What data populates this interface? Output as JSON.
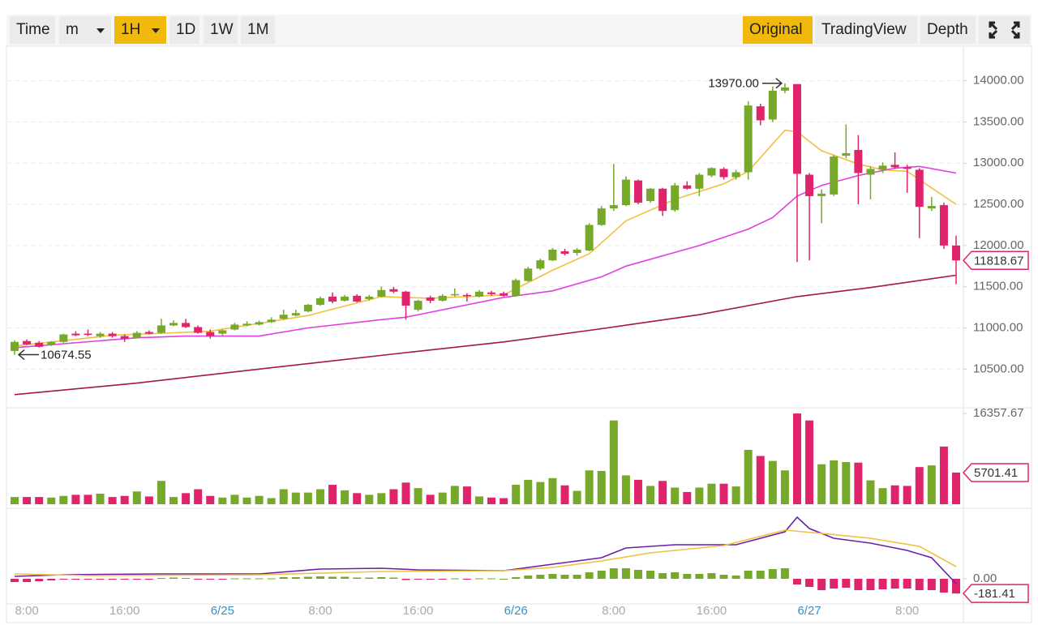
{
  "toolbar": {
    "left": [
      "Time",
      "m",
      "1H",
      "1D",
      "1W",
      "1M"
    ],
    "right": [
      "Original",
      "TradingView",
      "Depth"
    ],
    "active": [
      "1H",
      "Original"
    ],
    "dropdowns": [
      "m",
      "1H"
    ]
  },
  "chart_data": [
    {
      "type": "candlestick",
      "up_color": "#76a82a",
      "down_color": "#e0246b",
      "ylim": [
        10060,
        14410
      ],
      "grid": true,
      "yticks": [
        {
          "value": 10500,
          "label": "10500.00"
        },
        {
          "value": 11000,
          "label": "11000.00"
        },
        {
          "value": 11500,
          "label": "11500.00"
        },
        {
          "value": 12000,
          "label": "12000.00"
        },
        {
          "value": 12500,
          "label": "12500.00"
        },
        {
          "value": 13000,
          "label": "13000.00"
        },
        {
          "value": 13500,
          "label": "13500.00"
        },
        {
          "value": 14000,
          "label": "14000.00"
        }
      ],
      "ohlc": [
        [
          10720,
          10850,
          10674.55,
          10830
        ],
        [
          10840,
          10860,
          10790,
          10800
        ],
        [
          10820,
          10840,
          10760,
          10770
        ],
        [
          10790,
          10840,
          10780,
          10830
        ],
        [
          10830,
          10930,
          10820,
          10920
        ],
        [
          10930,
          10960,
          10900,
          10910
        ],
        [
          10930,
          10980,
          10900,
          10920
        ],
        [
          10900,
          10950,
          10880,
          10930
        ],
        [
          10930,
          10950,
          10880,
          10900
        ],
        [
          10900,
          10920,
          10830,
          10870
        ],
        [
          10880,
          10960,
          10870,
          10940
        ],
        [
          10950,
          10970,
          10920,
          10930
        ],
        [
          10940,
          11110,
          10930,
          11030
        ],
        [
          11030,
          11090,
          11020,
          11060
        ],
        [
          11060,
          11110,
          11000,
          11010
        ],
        [
          11010,
          11030,
          10930,
          10940
        ],
        [
          10950,
          10980,
          10870,
          10900
        ],
        [
          10930,
          10980,
          10910,
          10970
        ],
        [
          10980,
          11060,
          10970,
          11040
        ],
        [
          11030,
          11080,
          11020,
          11050
        ],
        [
          11040,
          11090,
          11030,
          11070
        ],
        [
          11070,
          11130,
          11060,
          11100
        ],
        [
          11110,
          11220,
          11100,
          11160
        ],
        [
          11150,
          11220,
          11140,
          11180
        ],
        [
          11200,
          11290,
          11190,
          11280
        ],
        [
          11280,
          11380,
          11270,
          11360
        ],
        [
          11380,
          11430,
          11300,
          11320
        ],
        [
          11330,
          11400,
          11320,
          11380
        ],
        [
          11390,
          11410,
          11310,
          11320
        ],
        [
          11350,
          11400,
          11330,
          11380
        ],
        [
          11380,
          11500,
          11370,
          11460
        ],
        [
          11470,
          11500,
          11420,
          11440
        ],
        [
          11440,
          11450,
          11100,
          11270
        ],
        [
          11220,
          11340,
          11200,
          11330
        ],
        [
          11370,
          11390,
          11300,
          11330
        ],
        [
          11330,
          11410,
          11320,
          11390
        ],
        [
          11400,
          11480,
          11380,
          11410
        ],
        [
          11400,
          11420,
          11320,
          11390
        ],
        [
          11380,
          11460,
          11370,
          11440
        ],
        [
          11430,
          11450,
          11390,
          11410
        ],
        [
          11420,
          11440,
          11380,
          11390
        ],
        [
          11390,
          11600,
          11380,
          11580
        ],
        [
          11570,
          11740,
          11560,
          11720
        ],
        [
          11720,
          11840,
          11700,
          11820
        ],
        [
          11820,
          11970,
          11810,
          11950
        ],
        [
          11930,
          11960,
          11880,
          11900
        ],
        [
          11910,
          11970,
          11880,
          11950
        ],
        [
          11940,
          12270,
          11930,
          12250
        ],
        [
          12250,
          12480,
          12240,
          12450
        ],
        [
          12450,
          12990,
          12420,
          12490
        ],
        [
          12490,
          12840,
          12480,
          12800
        ],
        [
          12790,
          12800,
          12500,
          12520
        ],
        [
          12540,
          12700,
          12520,
          12690
        ],
        [
          12690,
          12700,
          12360,
          12420
        ],
        [
          12430,
          12760,
          12410,
          12730
        ],
        [
          12730,
          12780,
          12680,
          12690
        ],
        [
          12690,
          12880,
          12600,
          12860
        ],
        [
          12850,
          12950,
          12830,
          12940
        ],
        [
          12930,
          12950,
          12800,
          12830
        ],
        [
          12830,
          12920,
          12800,
          12890
        ],
        [
          12890,
          13750,
          12800,
          13700
        ],
        [
          13690,
          13720,
          13460,
          13520
        ],
        [
          13530,
          13930,
          13500,
          13880
        ],
        [
          13880,
          13970,
          13850,
          13920
        ],
        [
          13960,
          13960,
          11800,
          12870
        ],
        [
          12860,
          12880,
          11820,
          12600
        ],
        [
          12600,
          12680,
          12270,
          12630
        ],
        [
          12620,
          13100,
          12600,
          13080
        ],
        [
          13090,
          13470,
          13060,
          13120
        ],
        [
          13160,
          13340,
          12500,
          12880
        ],
        [
          12860,
          12960,
          12560,
          12930
        ],
        [
          12920,
          13010,
          12880,
          12970
        ],
        [
          12980,
          13130,
          12930,
          12950
        ],
        [
          12950,
          12980,
          12640,
          12930
        ],
        [
          12920,
          12940,
          12090,
          12470
        ],
        [
          12450,
          12590,
          12420,
          12480
        ],
        [
          12490,
          12520,
          11960,
          12000
        ],
        [
          12000,
          12120,
          11530,
          11818.67
        ]
      ],
      "lines": [
        {
          "color": "#f0c040",
          "x": [
            0,
            8,
            16,
            24,
            30,
            34,
            40,
            44,
            47,
            50,
            54,
            58,
            60,
            63,
            64,
            66,
            69,
            71,
            73,
            75,
            77
          ],
          "values": [
            10780,
            10910,
            10960,
            11150,
            11380,
            11360,
            11400,
            11700,
            11900,
            12300,
            12560,
            12750,
            12900,
            13400,
            13380,
            13150,
            12990,
            12920,
            12900,
            12700,
            12500
          ]
        },
        {
          "color": "#e040e0",
          "x": [
            0,
            10,
            14,
            20,
            24,
            30,
            32,
            40,
            44,
            48,
            50,
            56,
            60,
            62,
            64,
            66,
            69,
            72,
            74,
            77
          ],
          "values": [
            10760,
            10880,
            10900,
            10900,
            11000,
            11100,
            11130,
            11370,
            11450,
            11620,
            11750,
            12000,
            12200,
            12340,
            12600,
            12730,
            12850,
            12940,
            12960,
            12880
          ]
        },
        {
          "color": "#a0174f",
          "x": [
            0,
            10,
            20,
            32,
            40,
            48,
            56,
            64,
            70,
            77
          ],
          "values": [
            10190,
            10330,
            10500,
            10700,
            10830,
            10990,
            11160,
            11380,
            11490,
            11640
          ]
        }
      ],
      "annotations": [
        {
          "kind": "high",
          "value": 13970,
          "label": "13970.00"
        },
        {
          "kind": "low",
          "value": 10674.55,
          "label": "10674.55"
        }
      ]
    },
    {
      "type": "bar",
      "up_color": "#76a82a",
      "down_color": "#e0246b",
      "ylim": [
        0,
        17100
      ],
      "yticks": [
        16357.67
      ],
      "values": [
        1300,
        1300,
        1300,
        1200,
        1500,
        1700,
        1700,
        1900,
        1300,
        1500,
        2300,
        1400,
        4200,
        1300,
        2000,
        2700,
        1500,
        1200,
        1700,
        1200,
        1500,
        1100,
        2700,
        2100,
        2100,
        2700,
        3500,
        2500,
        2000,
        1700,
        2000,
        2700,
        3900,
        2900,
        1700,
        2100,
        3300,
        3200,
        1400,
        1200,
        1100,
        3500,
        4400,
        4000,
        4700,
        3400,
        2400,
        6100,
        6000,
        15100,
        5200,
        4400,
        3300,
        4200,
        3000,
        2200,
        3000,
        3700,
        3700,
        3200,
        9800,
        8700,
        7800,
        6100,
        16357.67,
        15100,
        7200,
        7900,
        7600,
        7500,
        4300,
        2900,
        3400,
        3300,
        6700,
        7000,
        10400,
        5701.41
      ]
    },
    {
      "type": "macd",
      "up_color": "#76a82a",
      "down_color": "#e0246b",
      "ylim": [
        -310,
        840
      ],
      "yticks": [
        {
          "value": 0,
          "label": "0.00"
        }
      ],
      "categories": [
        null,
        "8:00",
        null,
        null,
        null,
        null,
        null,
        null,
        null,
        "16:00",
        null,
        null,
        null,
        null,
        null,
        null,
        null,
        "6/25",
        null,
        null,
        null,
        null,
        null,
        null,
        null,
        "8:00",
        null,
        null,
        null,
        null,
        null,
        null,
        null,
        "16:00",
        null,
        null,
        null,
        null,
        null,
        null,
        null,
        "6/26",
        null,
        null,
        null,
        null,
        null,
        null,
        null,
        "8:00",
        null,
        null,
        null,
        null,
        null,
        null,
        null,
        "16:00",
        null,
        null,
        null,
        null,
        null,
        null,
        null,
        "6/27",
        null,
        null,
        null,
        null,
        null,
        null,
        null,
        "8:00",
        null,
        null,
        null,
        null
      ],
      "values": [
        -40,
        -40,
        -30,
        -20,
        -10,
        -5,
        -5,
        -5,
        -5,
        -8,
        -3,
        -3,
        10,
        15,
        10,
        -5,
        -10,
        -5,
        5,
        5,
        5,
        5,
        20,
        20,
        25,
        30,
        25,
        25,
        15,
        15,
        20,
        15,
        -15,
        -10,
        -10,
        -5,
        5,
        -5,
        5,
        5,
        0,
        20,
        40,
        50,
        60,
        50,
        50,
        80,
        100,
        130,
        130,
        110,
        100,
        70,
        80,
        60,
        60,
        70,
        50,
        40,
        100,
        100,
        120,
        130,
        -70,
        -100,
        -140,
        -120,
        -110,
        -140,
        -140,
        -130,
        -120,
        -120,
        -140,
        -140,
        -170,
        -181.41
      ],
      "lines": [
        {
          "color": "#6a1fa8",
          "x": [
            0,
            4,
            12,
            20,
            25,
            30,
            33,
            40,
            44,
            48,
            50,
            54,
            58,
            59,
            61,
            63,
            64,
            65,
            67,
            70,
            73,
            75,
            77
          ],
          "values": [
            30,
            50,
            60,
            60,
            120,
            130,
            110,
            100,
            180,
            260,
            380,
            420,
            420,
            420,
            500,
            580,
            760,
            620,
            500,
            440,
            350,
            260,
            -60
          ]
        },
        {
          "color": "#f0c040",
          "x": [
            0,
            6,
            20,
            30,
            40,
            44,
            48,
            52,
            58,
            63,
            66,
            70,
            74,
            77
          ],
          "values": [
            60,
            40,
            50,
            90,
            100,
            140,
            220,
            320,
            410,
            600,
            560,
            500,
            400,
            150
          ]
        }
      ]
    }
  ]
}
